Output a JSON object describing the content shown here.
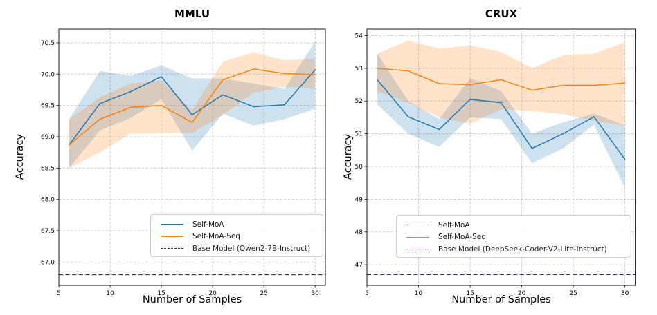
{
  "chart_data": [
    {
      "type": "line",
      "title": "MMLU",
      "xlabel": "Number of Samples",
      "ylabel": "Accuracy",
      "xlim": [
        5,
        31
      ],
      "ylim": [
        66.63,
        70.72
      ],
      "xticks": [
        5,
        10,
        15,
        20,
        25,
        30
      ],
      "xtick_labels": [
        "5",
        "10",
        "15",
        "20",
        "25",
        "30"
      ],
      "yticks": [
        67.0,
        67.5,
        68.0,
        68.5,
        69.0,
        69.5,
        70.0,
        70.5
      ],
      "ytick_labels": [
        "67.0",
        "67.5",
        "68.0",
        "68.5",
        "69.0",
        "69.5",
        "70.0",
        "70.5"
      ],
      "grid": true,
      "legend_position": "lower center-right",
      "x": [
        6,
        9,
        12,
        15,
        18,
        21,
        24,
        27,
        30
      ],
      "series": [
        {
          "name": "Self-MoA",
          "color": "#1f77b4",
          "values": [
            68.87,
            69.53,
            69.72,
            69.96,
            69.35,
            69.67,
            69.48,
            69.51,
            70.07
          ],
          "band_lower": [
            68.5,
            69.1,
            69.3,
            69.6,
            68.78,
            69.37,
            69.18,
            69.28,
            69.45
          ],
          "band_upper": [
            69.28,
            70.05,
            69.97,
            70.14,
            69.93,
            69.93,
            69.85,
            69.76,
            70.52
          ]
        },
        {
          "name": "Self-MoA-Seq",
          "color": "#ff7f0e",
          "values": [
            68.87,
            69.28,
            69.47,
            69.5,
            69.23,
            69.91,
            70.08,
            70.01,
            69.99
          ],
          "band_lower": [
            68.5,
            68.75,
            69.05,
            69.06,
            69.06,
            69.35,
            69.7,
            69.8,
            69.76
          ],
          "band_upper": [
            69.28,
            69.63,
            69.85,
            69.9,
            69.42,
            70.2,
            70.35,
            70.22,
            70.25
          ]
        }
      ],
      "baseline": {
        "label": "Base Model (Qwen2-7B-Instruct)",
        "value": 66.8,
        "color": "#800080",
        "style": "dashed"
      }
    },
    {
      "type": "line",
      "title": "CRUX",
      "xlabel": "Number of Samples",
      "ylabel": "Accuracy",
      "xlim": [
        5,
        31
      ],
      "ylim": [
        46.37,
        54.2
      ],
      "xticks": [
        5,
        10,
        15,
        20,
        25,
        30
      ],
      "xtick_labels": [
        "5",
        "10",
        "15",
        "20",
        "25",
        "30"
      ],
      "yticks": [
        47,
        48,
        49,
        50,
        51,
        52,
        53,
        54
      ],
      "ytick_labels": [
        "47",
        "48",
        "49",
        "50",
        "51",
        "52",
        "53",
        "54"
      ],
      "grid": true,
      "legend_position": "lower center-right",
      "x": [
        6,
        9,
        12,
        15,
        18,
        21,
        24,
        27,
        30
      ],
      "series": [
        {
          "name": "Self-MoA",
          "color": "#1f77b4",
          "values": [
            52.65,
            51.52,
            51.13,
            52.05,
            51.95,
            50.55,
            51.0,
            51.52,
            50.22
          ],
          "band_lower": [
            51.9,
            51.0,
            50.6,
            51.5,
            51.45,
            50.1,
            50.55,
            51.28,
            49.35
          ],
          "band_upper": [
            53.45,
            52.0,
            51.45,
            52.7,
            52.3,
            51.0,
            51.35,
            51.62,
            51.26
          ]
        },
        {
          "name": "Self-MoA-Seq",
          "color": "#ff7f0e",
          "values": [
            53.0,
            52.92,
            52.53,
            52.5,
            52.65,
            52.33,
            52.48,
            52.48,
            52.55
          ],
          "band_lower": [
            52.3,
            51.95,
            51.5,
            51.3,
            51.75,
            51.7,
            51.6,
            51.4,
            51.25
          ],
          "band_upper": [
            53.45,
            53.85,
            53.6,
            53.7,
            53.5,
            53.0,
            53.4,
            53.45,
            53.8
          ]
        }
      ],
      "baseline": {
        "label": "Base Model (DeepSeek-Coder-V2-Lite-Instruct)",
        "value": 46.7,
        "color": "#800080",
        "style": "dashed"
      }
    }
  ]
}
